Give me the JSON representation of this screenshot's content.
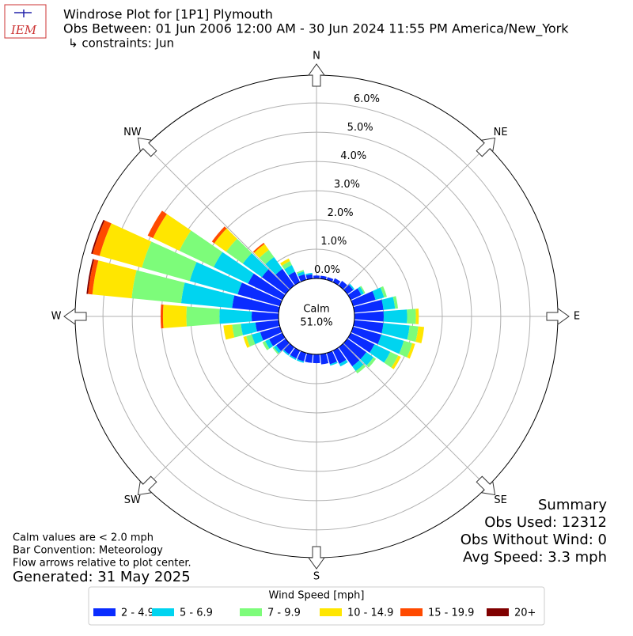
{
  "chart_data": {
    "type": "windrose",
    "logo_text": "IEM",
    "title": "Windrose Plot for [1P1] Plymouth",
    "subtitle": "Obs Between: 01 Jun 2006 12:00 AM - 30 Jun 2024 11:55 PM America/New_York",
    "constraints": "↳ constraints: Jun",
    "directions": [
      "N",
      "NE",
      "E",
      "SE",
      "S",
      "SW",
      "W",
      "NW"
    ],
    "rlim": [
      0,
      6.95
    ],
    "rticks": [
      {
        "value": 0,
        "label": "0.0%"
      },
      {
        "value": 1,
        "label": "1.0%"
      },
      {
        "value": 2,
        "label": "2.0%"
      },
      {
        "value": 3,
        "label": "3.0%"
      },
      {
        "value": 4,
        "label": "4.0%"
      },
      {
        "value": 5,
        "label": "5.0%"
      },
      {
        "value": 6,
        "label": "6.0%"
      }
    ],
    "grid": true,
    "calm": {
      "name": "Calm",
      "value": 51.0,
      "value_label": "51.0%"
    },
    "x": [
      0,
      10,
      20,
      30,
      40,
      50,
      60,
      70,
      80,
      90,
      100,
      110,
      120,
      130,
      140,
      150,
      160,
      170,
      180,
      190,
      200,
      210,
      220,
      230,
      240,
      250,
      260,
      270,
      280,
      290,
      300,
      310,
      320,
      330,
      340,
      350
    ],
    "series": [
      {
        "name": "2 - 4.9",
        "color": "#0a2cff",
        "values": [
          0.1,
          0.1,
          0.1,
          0.15,
          0.2,
          0.25,
          0.4,
          0.8,
          1.0,
          1.0,
          1.0,
          1.0,
          0.9,
          0.8,
          0.8,
          0.5,
          0.4,
          0.35,
          0.3,
          0.3,
          0.3,
          0.3,
          0.3,
          0.4,
          0.5,
          0.7,
          0.8,
          0.92,
          1.6,
          1.5,
          1.3,
          1.0,
          0.7,
          0.4,
          0.2,
          0.15
        ]
      },
      {
        "name": "5 - 6.9",
        "color": "#00d4f0",
        "values": [
          0,
          0,
          0,
          0,
          0,
          0.05,
          0.1,
          0.3,
          0.4,
          0.8,
          0.9,
          0.8,
          0.6,
          0.3,
          0.2,
          0.1,
          0.05,
          0,
          0,
          0,
          0.05,
          0.05,
          0.05,
          0.1,
          0.15,
          0.3,
          0.5,
          1.1,
          1.75,
          1.7,
          1.3,
          0.8,
          0.5,
          0.25,
          0.1,
          0.05
        ]
      },
      {
        "name": "7 - 9.9",
        "color": "#7dfc7a",
        "values": [
          0,
          0,
          0,
          0,
          0,
          0,
          0.05,
          0.1,
          0.1,
          0.3,
          0.3,
          0.3,
          0.3,
          0.1,
          0.1,
          0,
          0,
          0,
          0,
          0,
          0,
          0,
          0,
          0.05,
          0.1,
          0.2,
          0.3,
          1.13,
          1.7,
          1.7,
          1.3,
          0.7,
          0.3,
          0.15,
          0.05,
          0
        ]
      },
      {
        "name": "10 - 14.9",
        "color": "#ffe600",
        "values": [
          0,
          0,
          0,
          0,
          0,
          0,
          0,
          0,
          0,
          0.1,
          0.2,
          0.1,
          0.1,
          0,
          0,
          0,
          0,
          0,
          0,
          0,
          0,
          0,
          0,
          0,
          0,
          0.1,
          0.3,
          0.8,
          1.35,
          1.5,
          1.0,
          0.5,
          0.25,
          0.1,
          0,
          0
        ]
      },
      {
        "name": "15 - 19.9",
        "color": "#ff4a00",
        "values": [
          0,
          0,
          0,
          0,
          0,
          0,
          0,
          0,
          0,
          0,
          0,
          0,
          0,
          0,
          0,
          0,
          0,
          0,
          0,
          0,
          0,
          0,
          0,
          0,
          0,
          0,
          0,
          0.08,
          0.15,
          0.25,
          0.2,
          0.1,
          0.05,
          0,
          0,
          0
        ]
      },
      {
        "name": "20+",
        "color": "#800000",
        "values": [
          0,
          0,
          0,
          0,
          0,
          0,
          0,
          0,
          0,
          0,
          0,
          0,
          0,
          0,
          0,
          0,
          0,
          0,
          0,
          0,
          0,
          0,
          0,
          0,
          0,
          0,
          0,
          0,
          0.05,
          0.05,
          0,
          0,
          0,
          0,
          0,
          0
        ]
      }
    ],
    "summary": [
      "Summary",
      "Obs Used: 12312",
      "Obs Without Wind: 0",
      "Avg Speed: 3.3 mph"
    ],
    "notes": [
      "Calm values are < 2.0 mph",
      "Bar Convention: Meteorology",
      "Flow arrows relative to plot center."
    ],
    "generated": "Generated: 31 May 2025",
    "legend_title": "Wind Speed [mph]"
  }
}
